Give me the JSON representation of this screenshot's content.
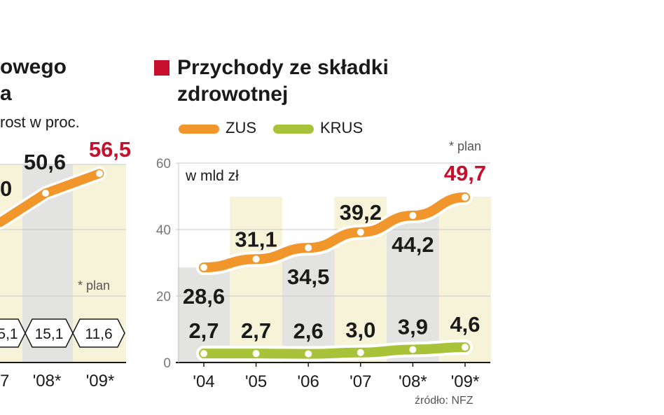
{
  "left_panel": {
    "title_line1": "owego",
    "title_line2": "a",
    "subtitle": "rost w proc.",
    "value_labels": [
      "0",
      "50,6",
      "56,5"
    ],
    "plan_note": "* plan",
    "pct_labels": [
      "5,1",
      "15,1",
      "11,6"
    ],
    "x_labels": [
      "7",
      "'08*",
      "'09*"
    ]
  },
  "right_panel": {
    "title": "Przychody ze składki zdrowotnej",
    "unit": "w mld zł",
    "plan_note": "* plan",
    "source": "źródło: NFZ"
  },
  "colors": {
    "zus": "#f0962a",
    "krus": "#a8c23a",
    "accent": "#c8102e",
    "band_light": "#f7f3d8",
    "band_gray": "#e3e3e1",
    "grid": "#c9c9c9"
  },
  "chart_data": {
    "type": "line",
    "title": "Przychody ze składki zdrowotnej",
    "ylabel": "w mld zł",
    "ylim": [
      0,
      60
    ],
    "yticks": [
      0,
      20,
      40,
      60
    ],
    "categories": [
      "'04",
      "'05",
      "'06",
      "'07",
      "'08*",
      "'09*"
    ],
    "series": [
      {
        "name": "ZUS",
        "values": [
          28.6,
          31.1,
          34.5,
          39.2,
          44.2,
          49.7
        ],
        "labels": [
          "28,6",
          "31,1",
          "34,5",
          "39,2",
          "44,2",
          "49,7"
        ]
      },
      {
        "name": "KRUS",
        "values": [
          2.7,
          2.7,
          2.6,
          3.0,
          3.9,
          4.6
        ],
        "labels": [
          "2,7",
          "2,7",
          "2,6",
          "3,0",
          "3,9",
          "4,6"
        ]
      }
    ],
    "note": "* plan",
    "source": "źródło: NFZ"
  }
}
